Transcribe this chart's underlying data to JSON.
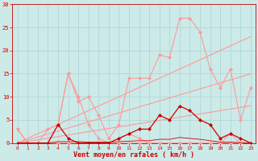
{
  "x": [
    0,
    1,
    2,
    3,
    4,
    5,
    6,
    7,
    8,
    9,
    10,
    11,
    12,
    13,
    14,
    15,
    16,
    17,
    18,
    19,
    20,
    21,
    22,
    23
  ],
  "line_pink_rafales": [
    0,
    0,
    0,
    0,
    4,
    15,
    9,
    10,
    6,
    1,
    4,
    14,
    14,
    14,
    19,
    18.5,
    27,
    27,
    24,
    16,
    12,
    16,
    5,
    12
  ],
  "line_pink_small": [
    3,
    0,
    0,
    3,
    4,
    15,
    10,
    4,
    1,
    0,
    1,
    2,
    1,
    0,
    0,
    0,
    0,
    0,
    0,
    0,
    0,
    0,
    0,
    0
  ],
  "line_pink_tiny": [
    3,
    0,
    0,
    0,
    0,
    0,
    0,
    0,
    0,
    0,
    0,
    0,
    0,
    0,
    0,
    0,
    0,
    0,
    0,
    0,
    0,
    2,
    0,
    0
  ],
  "trend_high": [
    0,
    1.0,
    2.0,
    3.0,
    4.0,
    5.0,
    6.0,
    7.0,
    8.0,
    9.0,
    10.0,
    11.0,
    12.0,
    13.0,
    14.0,
    15.0,
    16.0,
    17.0,
    18.0,
    19.0,
    20.0,
    21.0,
    22.0,
    23.0
  ],
  "trend_mid": [
    0,
    0.65,
    1.3,
    1.95,
    2.6,
    3.25,
    3.9,
    4.55,
    5.2,
    5.85,
    6.5,
    7.15,
    7.8,
    8.45,
    9.1,
    9.75,
    10.4,
    11.05,
    11.7,
    12.35,
    13.0,
    13.65,
    14.3,
    14.95
  ],
  "trend_low": [
    0,
    0.35,
    0.7,
    1.05,
    1.4,
    1.75,
    2.1,
    2.45,
    2.8,
    3.15,
    3.5,
    3.85,
    4.2,
    4.55,
    4.9,
    5.25,
    5.6,
    5.95,
    6.3,
    6.65,
    7.0,
    7.35,
    7.7,
    8.05
  ],
  "line_dark_main": [
    0,
    0,
    0,
    0,
    4,
    1,
    0,
    0,
    0,
    0,
    1,
    2,
    3,
    3,
    6,
    5,
    8,
    7,
    5,
    4,
    1,
    2,
    1,
    0
  ],
  "line_dark_zero1": [
    0,
    0,
    0,
    0,
    0,
    0,
    0,
    0,
    0,
    0,
    0,
    0,
    0,
    0,
    0,
    0,
    0,
    0,
    0,
    0,
    0,
    0,
    0,
    0
  ],
  "line_dark_zero2": [
    0,
    0,
    0,
    0,
    0,
    0,
    0,
    0,
    0,
    0,
    0,
    0,
    0,
    0,
    0,
    0,
    0,
    0,
    0,
    0,
    0,
    0,
    0,
    0
  ],
  "line_dark_zero3": [
    0,
    0,
    0,
    0,
    0.3,
    0.3,
    0.3,
    0.2,
    0.2,
    0.2,
    0.3,
    0.4,
    0.5,
    0.5,
    0.8,
    0.8,
    1.2,
    1.0,
    0.8,
    0.5,
    0.2,
    0.2,
    0.1,
    0
  ],
  "xlabel": "Vent moyen/en rafales ( km/h )",
  "bg_color": "#cceae8",
  "grid_color": "#aad4d2",
  "line_color_dark": "#cc0000",
  "line_color_light": "#ff9999",
  "line_color_mid": "#ff7777",
  "ylim": [
    0,
    30
  ],
  "xlim": [
    0,
    23
  ]
}
